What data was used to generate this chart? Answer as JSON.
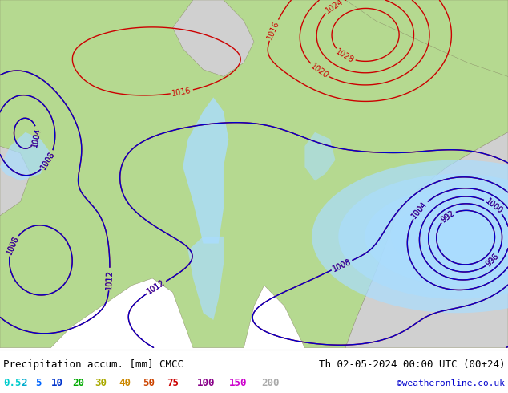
{
  "title_left": "Precipitation accum. [mm] CMCC",
  "title_right": "Th 02-05-2024 00:00 UTC (00+24)",
  "credit": "©weatheronline.co.uk",
  "legend_values": [
    "0.5",
    "2",
    "5",
    "10",
    "20",
    "30",
    "40",
    "50",
    "75",
    "100",
    "150",
    "200"
  ],
  "label_fontsize": 9,
  "credit_fontsize": 8,
  "legend_fontsize": 9,
  "land_color": "#b5d990",
  "sea_color": "#d0d0d0",
  "precip_colors": [
    "#c8eeff",
    "#a0daff",
    "#78c8ff",
    "#50b4ff",
    "#28a0ff"
  ],
  "contour_red": "#cc0000",
  "contour_blue": "#0000cc",
  "legend_label_colors": [
    "#00cccc",
    "#00aacc",
    "#0066ff",
    "#0033cc",
    "#00aa00",
    "#aaaa00",
    "#cc8800",
    "#cc4400",
    "#cc0000",
    "#880088",
    "#cc00cc",
    "#aaaaaa"
  ]
}
